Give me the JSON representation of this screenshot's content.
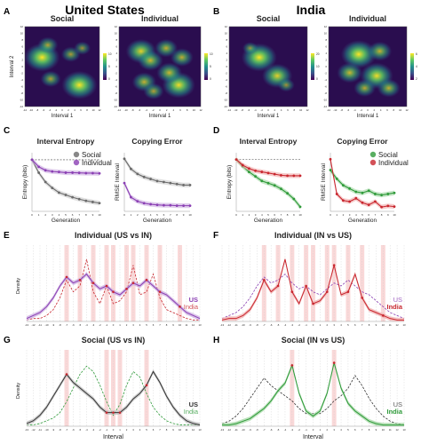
{
  "figure": {
    "panel_letters": [
      "A",
      "B",
      "C",
      "D",
      "E",
      "F",
      "G",
      "H"
    ],
    "countries": {
      "us": "United States",
      "india": "India"
    },
    "colors": {
      "purple": "#8a3fb3",
      "purple_fill": "#c9a8e0",
      "red": "#c8262e",
      "red_fill": "#f0a8a8",
      "green": "#2f9a3a",
      "green_fill": "#9fd6a0",
      "gray": "#6a6a6a",
      "dark": "#333333",
      "highlight": "#f7c3c3"
    }
  },
  "chart_data": [
    {
      "panel": "A",
      "type": "heatmap",
      "title": "Social",
      "xlabel": "Interval 1",
      "ylabel": "Interval 2",
      "xticks": [
        "-12",
        "-10",
        "-8",
        "-6",
        "-4",
        "-2",
        "0",
        "2",
        "4",
        "6",
        "8",
        "10",
        "12"
      ],
      "yticks": [
        "12",
        "10",
        "8",
        "6",
        "4",
        "2",
        "0",
        "-2",
        "-4",
        "-6",
        "-8",
        "-10",
        "-12"
      ],
      "colorbar": {
        "ticks": [
          "10",
          "5",
          "0"
        ],
        "range": [
          0,
          10
        ]
      },
      "hotspots": [
        {
          "x": -7,
          "y": 3,
          "intensity": 1.0
        },
        {
          "x": 6,
          "y": -6,
          "intensity": 1.0
        },
        {
          "x": -5,
          "y": 7,
          "intensity": 0.4
        },
        {
          "x": 3,
          "y": 4,
          "intensity": 0.35
        },
        {
          "x": -4,
          "y": -4,
          "intensity": 0.4
        },
        {
          "x": 7,
          "y": 6,
          "intensity": 0.25
        }
      ]
    },
    {
      "panel": "A",
      "type": "heatmap",
      "title": "Individual",
      "xlabel": "Interval 1",
      "ylabel": "",
      "xticks": [
        "-12",
        "-10",
        "-8",
        "-6",
        "-4",
        "-2",
        "0",
        "2",
        "4",
        "6",
        "8",
        "10",
        "12"
      ],
      "yticks": [
        "12",
        "10",
        "8",
        "6",
        "4",
        "2",
        "0",
        "-2",
        "-4",
        "-6",
        "-8",
        "-10",
        "-12"
      ],
      "colorbar": {
        "ticks": [
          "10",
          "5",
          "0"
        ],
        "range": [
          0,
          10
        ]
      },
      "hotspots": [
        {
          "x": -6,
          "y": 5,
          "intensity": 0.8
        },
        {
          "x": 6,
          "y": -6,
          "intensity": 0.9
        },
        {
          "x": -3,
          "y": 2,
          "intensity": 0.6
        },
        {
          "x": 3,
          "y": -2,
          "intensity": 0.6
        },
        {
          "x": 2,
          "y": 6,
          "intensity": 0.5
        },
        {
          "x": -5,
          "y": -5,
          "intensity": 0.55
        },
        {
          "x": 7,
          "y": 3,
          "intensity": 0.5
        },
        {
          "x": -2,
          "y": -8,
          "intensity": 0.4
        }
      ]
    },
    {
      "panel": "B",
      "type": "heatmap",
      "title": "Social",
      "xlabel": "Interval 1",
      "ylabel": "",
      "xticks": [
        "-12",
        "-10",
        "-8",
        "-6",
        "-4",
        "-2",
        "0",
        "2",
        "4",
        "6",
        "8",
        "10",
        "12"
      ],
      "yticks": [
        "12",
        "10",
        "8",
        "6",
        "4",
        "2",
        "0",
        "-2",
        "-4",
        "-6",
        "-8",
        "-10",
        "-12"
      ],
      "colorbar": {
        "ticks": [
          "20",
          "10",
          "0"
        ],
        "range": [
          0,
          20
        ]
      },
      "hotspots": [
        {
          "x": -3,
          "y": 3,
          "intensity": 1.0
        },
        {
          "x": 3,
          "y": -3,
          "intensity": 0.8
        },
        {
          "x": -6,
          "y": 6,
          "intensity": 0.2
        },
        {
          "x": 6,
          "y": -6,
          "intensity": 0.25
        }
      ]
    },
    {
      "panel": "B",
      "type": "heatmap",
      "title": "Individual",
      "xlabel": "Interval 1",
      "ylabel": "",
      "xticks": [
        "-12",
        "-10",
        "-8",
        "-6",
        "-4",
        "-2",
        "0",
        "2",
        "4",
        "6",
        "8",
        "10",
        "12"
      ],
      "yticks": [
        "12",
        "10",
        "8",
        "6",
        "4",
        "2",
        "0",
        "-2",
        "-4",
        "-6",
        "-8",
        "-10",
        "-12"
      ],
      "colorbar": {
        "ticks": [
          "6",
          "4",
          "2"
        ],
        "range": [
          0,
          6
        ]
      },
      "hotspots": [
        {
          "x": -3,
          "y": 4,
          "intensity": 1.0
        },
        {
          "x": 3,
          "y": -3,
          "intensity": 0.9
        },
        {
          "x": -6,
          "y": -2,
          "intensity": 0.6
        },
        {
          "x": 4,
          "y": 5,
          "intensity": 0.55
        },
        {
          "x": 7,
          "y": -7,
          "intensity": 0.5
        },
        {
          "x": -1,
          "y": -7,
          "intensity": 0.45
        }
      ]
    },
    {
      "panel": "C",
      "type": "line",
      "title": "Interval Entropy",
      "xlabel": "Generation",
      "ylabel": "Entropy (bits)",
      "x": [
        0,
        1,
        2,
        3,
        4,
        5,
        6,
        7,
        8,
        9,
        10
      ],
      "baseline": 0,
      "series": [
        {
          "name": "Social",
          "color": "gray",
          "values": [
            0,
            -0.55,
            -0.95,
            -1.2,
            -1.4,
            -1.5,
            -1.6,
            -1.68,
            -1.75,
            -1.8,
            -1.85
          ]
        },
        {
          "name": "Individual",
          "color": "purple",
          "values": [
            0,
            -0.3,
            -0.45,
            -0.5,
            -0.52,
            -0.55,
            -0.55,
            -0.56,
            -0.57,
            -0.57,
            -0.58
          ]
        }
      ],
      "ylim": [
        -2.2,
        0.3
      ]
    },
    {
      "panel": "C",
      "type": "line",
      "title": "Copying Error",
      "xlabel": "Generation",
      "ylabel": "RMSE Interval",
      "x": [
        0,
        1,
        2,
        3,
        4,
        5,
        6,
        7,
        8,
        9,
        10
      ],
      "series": [
        {
          "name": "Social",
          "color": "gray",
          "values": [
            3.2,
            2.7,
            2.45,
            2.3,
            2.2,
            2.1,
            2.05,
            2.0,
            1.95,
            1.9,
            1.9
          ]
        },
        {
          "name": "Individual",
          "color": "purple",
          "values": [
            2.0,
            1.3,
            1.1,
            1.0,
            0.95,
            0.92,
            0.9,
            0.9,
            0.88,
            0.88,
            0.88
          ]
        }
      ],
      "ylim": [
        0.6,
        3.5
      ]
    },
    {
      "panel": "D",
      "type": "line",
      "title": "Interval Entropy",
      "xlabel": "Generation",
      "ylabel": "Entropy (bits)",
      "x": [
        0,
        1,
        2,
        3,
        4,
        5,
        6,
        7,
        8,
        9,
        10
      ],
      "baseline": 0,
      "series": [
        {
          "name": "Social",
          "color": "green",
          "values": [
            0,
            -0.3,
            -0.55,
            -0.75,
            -0.95,
            -1.05,
            -1.15,
            -1.3,
            -1.5,
            -1.75,
            -2.1
          ]
        },
        {
          "name": "Individual",
          "color": "red",
          "values": [
            0,
            -0.25,
            -0.4,
            -0.5,
            -0.55,
            -0.6,
            -0.65,
            -0.7,
            -0.72,
            -0.72,
            -0.72
          ]
        }
      ],
      "ylim": [
        -2.3,
        0.3
      ]
    },
    {
      "panel": "D",
      "type": "line",
      "title": "Copying Error",
      "xlabel": "Generation",
      "ylabel": "RMSE Interval",
      "x": [
        0,
        1,
        2,
        3,
        4,
        5,
        6,
        7,
        8,
        9,
        10
      ],
      "series": [
        {
          "name": "Social",
          "color": "green",
          "values": [
            2.4,
            2.0,
            1.7,
            1.55,
            1.4,
            1.35,
            1.45,
            1.3,
            1.25,
            1.3,
            1.35
          ]
        },
        {
          "name": "Individual",
          "color": "red",
          "values": [
            2.9,
            1.3,
            1.0,
            0.95,
            1.1,
            0.9,
            0.8,
            0.95,
            0.7,
            0.75,
            0.72
          ]
        }
      ],
      "legend": [
        "Social",
        "Individual"
      ],
      "ylim": [
        0.5,
        3.2
      ]
    },
    {
      "panel": "E",
      "type": "line",
      "title": "Individual (US vs IN)",
      "xlabel": "",
      "ylabel": "Density",
      "x": [
        -13,
        -12,
        -11,
        -10,
        -9,
        -8,
        -7,
        -6,
        -5,
        -4,
        -3,
        -2,
        -1,
        0,
        1,
        2,
        3,
        4,
        5,
        6,
        7,
        8,
        9,
        10,
        11,
        12,
        13
      ],
      "highlight_intervals": [
        -7,
        -5,
        -3,
        -1,
        0,
        2,
        3,
        5,
        7,
        10
      ],
      "series": [
        {
          "name": "US",
          "color": "purple",
          "style": "solid",
          "values": [
            0.01,
            0.02,
            0.03,
            0.05,
            0.08,
            0.12,
            0.15,
            0.13,
            0.14,
            0.16,
            0.13,
            0.11,
            0.12,
            0.1,
            0.09,
            0.11,
            0.13,
            0.12,
            0.14,
            0.12,
            0.1,
            0.09,
            0.07,
            0.05,
            0.03,
            0.02,
            0.01
          ]
        },
        {
          "name": "India",
          "color": "red",
          "style": "dashed",
          "values": [
            0.005,
            0.01,
            0.01,
            0.02,
            0.04,
            0.08,
            0.14,
            0.1,
            0.12,
            0.21,
            0.1,
            0.06,
            0.12,
            0.06,
            0.07,
            0.1,
            0.19,
            0.09,
            0.1,
            0.16,
            0.08,
            0.04,
            0.03,
            0.02,
            0.01,
            0.005,
            0.005
          ]
        }
      ],
      "ylim": [
        0,
        0.24
      ]
    },
    {
      "panel": "F",
      "type": "line",
      "title": "Individual (IN vs US)",
      "xlabel": "",
      "ylabel": "",
      "x": [
        -13,
        -12,
        -11,
        -10,
        -9,
        -8,
        -7,
        -6,
        -5,
        -4,
        -3,
        -2,
        -1,
        0,
        1,
        2,
        3,
        4,
        5,
        6,
        7,
        8,
        9,
        10,
        11,
        12,
        13
      ],
      "highlight_intervals": [
        -7,
        -5,
        -3,
        -1,
        0,
        2,
        3,
        5,
        7,
        10
      ],
      "series": [
        {
          "name": "US",
          "color": "purple",
          "style": "dashed",
          "values": [
            0.01,
            0.02,
            0.03,
            0.05,
            0.08,
            0.12,
            0.15,
            0.13,
            0.14,
            0.16,
            0.13,
            0.11,
            0.12,
            0.1,
            0.09,
            0.11,
            0.13,
            0.12,
            0.14,
            0.12,
            0.1,
            0.09,
            0.07,
            0.05,
            0.03,
            0.02,
            0.01
          ]
        },
        {
          "name": "India",
          "color": "red",
          "style": "solid",
          "values": [
            0.005,
            0.01,
            0.01,
            0.02,
            0.04,
            0.08,
            0.14,
            0.1,
            0.12,
            0.21,
            0.1,
            0.06,
            0.12,
            0.06,
            0.07,
            0.1,
            0.19,
            0.09,
            0.1,
            0.16,
            0.08,
            0.04,
            0.03,
            0.02,
            0.01,
            0.005,
            0.005
          ]
        }
      ],
      "ylim": [
        0,
        0.24
      ]
    },
    {
      "panel": "G",
      "type": "line",
      "title": "Social (US vs IN)",
      "xlabel": "Interval",
      "ylabel": "Density",
      "x": [
        -13,
        -12,
        -11,
        -10,
        -9,
        -8,
        -7,
        -6,
        -5,
        -4,
        -3,
        -2,
        -1,
        0,
        1,
        2,
        3,
        4,
        5,
        6,
        7,
        8,
        9,
        10,
        11,
        12,
        13
      ],
      "highlight_intervals": [
        -7,
        -1,
        0,
        1,
        5
      ],
      "series": [
        {
          "name": "US",
          "color": "dark",
          "style": "solid",
          "values": [
            0.01,
            0.02,
            0.04,
            0.07,
            0.11,
            0.15,
            0.19,
            0.16,
            0.14,
            0.12,
            0.1,
            0.07,
            0.05,
            0.05,
            0.05,
            0.07,
            0.1,
            0.12,
            0.15,
            0.2,
            0.16,
            0.11,
            0.07,
            0.04,
            0.02,
            0.01,
            0.005
          ]
        },
        {
          "name": "India",
          "color": "green",
          "style": "dashed",
          "values": [
            0.005,
            0.005,
            0.01,
            0.02,
            0.03,
            0.05,
            0.09,
            0.14,
            0.19,
            0.22,
            0.2,
            0.15,
            0.09,
            0.04,
            0.08,
            0.15,
            0.2,
            0.18,
            0.12,
            0.07,
            0.04,
            0.02,
            0.01,
            0.005,
            0.005,
            0.005,
            0.005
          ]
        }
      ],
      "ylim": [
        0,
        0.26
      ]
    },
    {
      "panel": "H",
      "type": "line",
      "title": "Social (IN vs US)",
      "xlabel": "Interval",
      "ylabel": "",
      "x": [
        -13,
        -12,
        -11,
        -10,
        -9,
        -8,
        -7,
        -6,
        -5,
        -4,
        -3,
        -2,
        -1,
        0,
        1,
        2,
        3,
        4,
        5,
        6,
        7,
        8,
        9,
        10,
        11,
        12,
        13
      ],
      "highlight_intervals": [
        -3,
        3
      ],
      "series": [
        {
          "name": "US",
          "color": "dark",
          "style": "dashed",
          "values": [
            0.01,
            0.02,
            0.04,
            0.07,
            0.11,
            0.15,
            0.19,
            0.16,
            0.14,
            0.12,
            0.1,
            0.07,
            0.05,
            0.05,
            0.05,
            0.07,
            0.1,
            0.12,
            0.15,
            0.2,
            0.16,
            0.11,
            0.07,
            0.04,
            0.02,
            0.01,
            0.005
          ]
        },
        {
          "name": "India",
          "color": "green",
          "style": "solid",
          "values": [
            0.005,
            0.005,
            0.01,
            0.02,
            0.03,
            0.05,
            0.07,
            0.1,
            0.14,
            0.17,
            0.24,
            0.13,
            0.06,
            0.04,
            0.06,
            0.13,
            0.25,
            0.15,
            0.09,
            0.06,
            0.04,
            0.02,
            0.01,
            0.005,
            0.005,
            0.005,
            0.005
          ]
        }
      ],
      "ylim": [
        0,
        0.28
      ]
    }
  ]
}
